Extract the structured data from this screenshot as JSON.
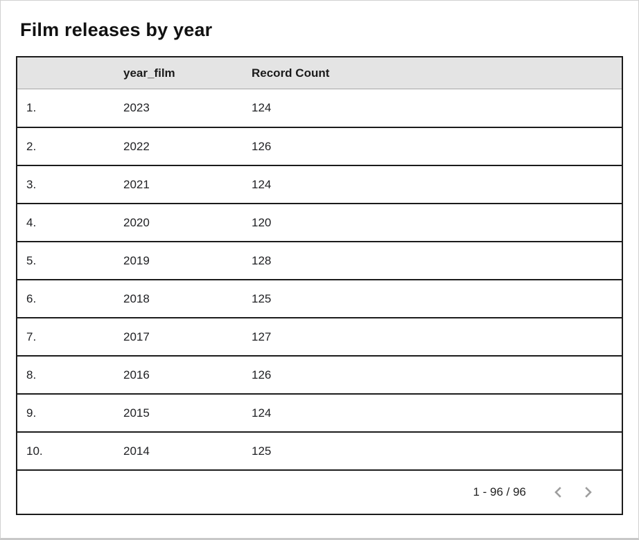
{
  "card": {
    "title": "Film releases by year"
  },
  "table": {
    "columns": [
      {
        "label": ""
      },
      {
        "label": "year_film"
      },
      {
        "label": "Record Count"
      }
    ],
    "rows": [
      {
        "index": "1.",
        "year_film": "2023",
        "record_count": "124"
      },
      {
        "index": "2.",
        "year_film": "2022",
        "record_count": "126"
      },
      {
        "index": "3.",
        "year_film": "2021",
        "record_count": "124"
      },
      {
        "index": "4.",
        "year_film": "2020",
        "record_count": "120"
      },
      {
        "index": "5.",
        "year_film": "2019",
        "record_count": "128"
      },
      {
        "index": "6.",
        "year_film": "2018",
        "record_count": "125"
      },
      {
        "index": "7.",
        "year_film": "2017",
        "record_count": "127"
      },
      {
        "index": "8.",
        "year_film": "2016",
        "record_count": "126"
      },
      {
        "index": "9.",
        "year_film": "2015",
        "record_count": "124"
      },
      {
        "index": "10.",
        "year_film": "2014",
        "record_count": "125"
      }
    ]
  },
  "pagination": {
    "range_label": "1 - 96 / 96",
    "prev_icon": "chevron-left-icon",
    "next_icon": "chevron-right-icon"
  },
  "chart_data": {
    "type": "table",
    "title": "Film releases by year",
    "categories": [
      "2023",
      "2022",
      "2021",
      "2020",
      "2019",
      "2018",
      "2017",
      "2016",
      "2015",
      "2014"
    ],
    "series": [
      {
        "name": "Record Count",
        "values": [
          124,
          126,
          124,
          120,
          128,
          125,
          127,
          126,
          124,
          125
        ]
      }
    ],
    "total_rows": 96,
    "visible_range": "1 - 96"
  },
  "colors": {
    "header_background": "#e4e4e4",
    "table_border": "#1b1b1b",
    "header_divider": "#a6a6a6",
    "chevron": "#9e9e9e",
    "text": "#202124",
    "outer_border": "#d0d0d0"
  }
}
